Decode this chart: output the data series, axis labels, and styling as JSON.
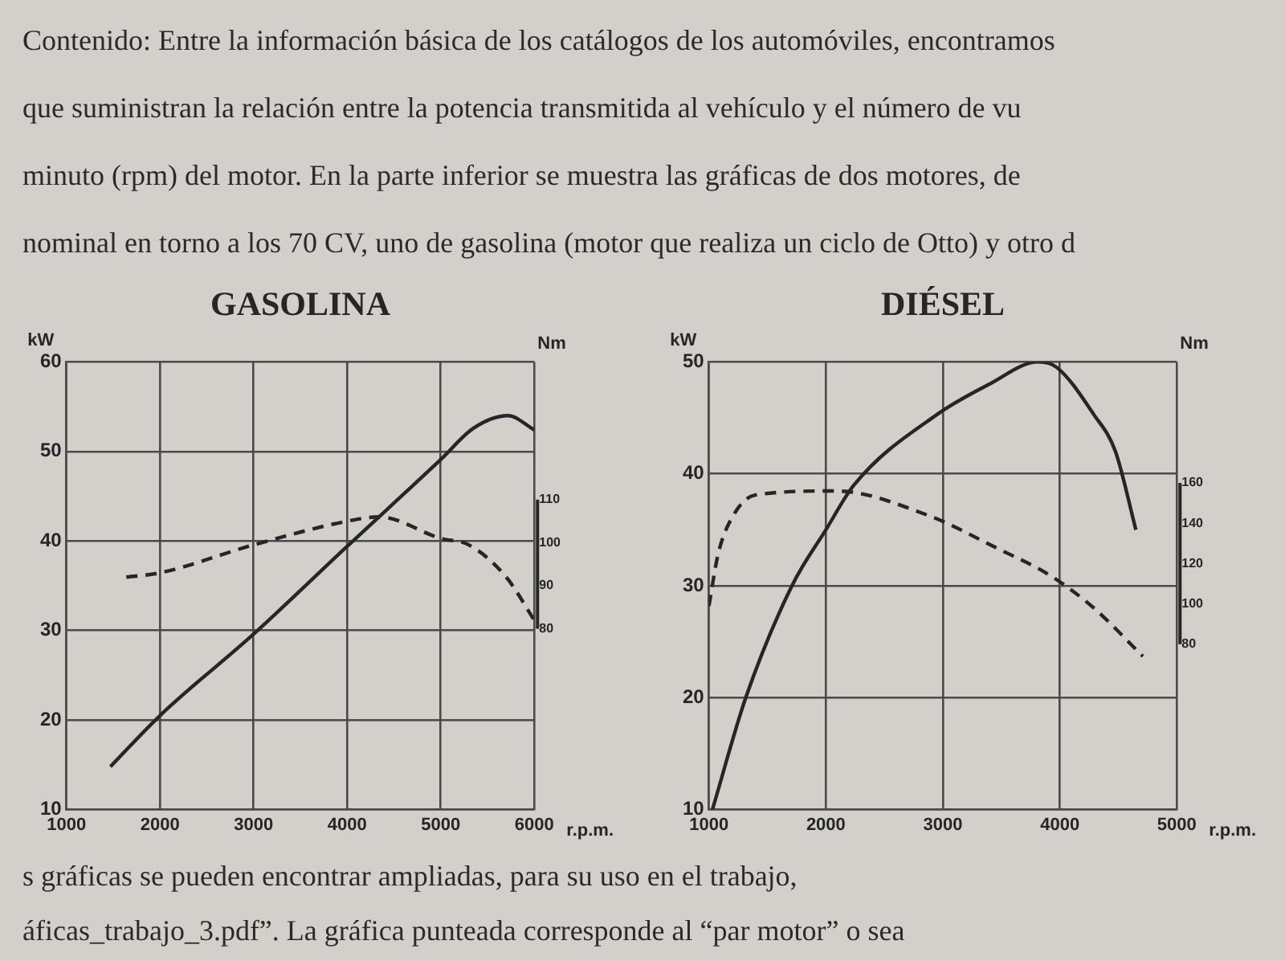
{
  "chart_data": [
    {
      "type": "other",
      "annotations": [
        "Contenido: Entre la información básica de los catálogos de los automóviles, encontramos",
        "que suministran la relación entre la potencia transmitida al vehículo y el número de vu",
        "minuto (rpm) del motor. En la parte inferior se muestra las gráficas de dos motores, de",
        "nominal en torno a los 70 CV, uno de gasolina (motor que realiza un ciclo de Otto) y otro d"
      ]
    },
    {
      "type": "line",
      "title": "GASOLINA",
      "xlabel": "r.p.m.",
      "ylabel": "kW",
      "y2label": "Nm",
      "xlim": [
        1000,
        6000
      ],
      "xticks": [
        1000,
        2000,
        3000,
        4000,
        5000,
        6000
      ],
      "ylim": [
        10,
        60
      ],
      "yticks": [
        10,
        20,
        30,
        40,
        50,
        60
      ],
      "y2lim": [
        38,
        142
      ],
      "y2ticks": [
        80,
        90,
        100,
        110
      ],
      "grid": true,
      "series": [
        {
          "color": "#262626",
          "line_style": "solid",
          "x": [
            1470,
            2000,
            3000,
            4000,
            5000,
            5350,
            5720,
            6000
          ],
          "values": [
            14.8,
            20.5,
            29.6,
            39.4,
            49.1,
            52.6,
            54,
            52.4
          ]
        },
        {
          "color": "#262626",
          "line_style": "dashed",
          "axis": "y2",
          "x": [
            1640,
            2000,
            3000,
            4000,
            4340,
            5000,
            5300,
            5700,
            6000
          ],
          "values": [
            92,
            93,
            99.5,
            105,
            106,
            101,
            99.5,
            92,
            82
          ]
        }
      ]
    },
    {
      "type": "line",
      "title": "DIÉSEL",
      "xlabel": "r.p.m.",
      "ylabel": "kW",
      "y2label": "Nm",
      "xlim": [
        1000,
        5000
      ],
      "xticks": [
        1000,
        2000,
        3000,
        4000,
        5000
      ],
      "ylim": [
        10,
        50
      ],
      "yticks": [
        10,
        20,
        30,
        40,
        50
      ],
      "y2lim": [
        -2,
        220
      ],
      "y2ticks": [
        80,
        100,
        120,
        140,
        160
      ],
      "grid": true,
      "series": [
        {
          "color": "#262626",
          "line_style": "solid",
          "x": [
            1030,
            1315,
            1710,
            2000,
            2240,
            2950,
            3395,
            3815,
            3975,
            4290,
            4475,
            4650
          ],
          "values": [
            10,
            20,
            30,
            35,
            39,
            45.3,
            48,
            50,
            49.5,
            45.3,
            42,
            35
          ]
        },
        {
          "color": "#262626",
          "line_style": "dashed",
          "axis": "y2",
          "x": [
            1000,
            1080,
            1210,
            1395,
            2080,
            2870,
            3450,
            3920,
            4290,
            4710
          ],
          "values": [
            99,
            125,
            144,
            154,
            156,
            144,
            128,
            114,
            98,
            74
          ]
        }
      ]
    },
    {
      "type": "other",
      "annotations": [
        "s gráficas se pueden encontrar ampliadas, para su uso en el trabajo,",
        "áficas_trabajo_3.pdf”. La gráfica punteada corresponde al “par motor” o sea"
      ]
    }
  ]
}
